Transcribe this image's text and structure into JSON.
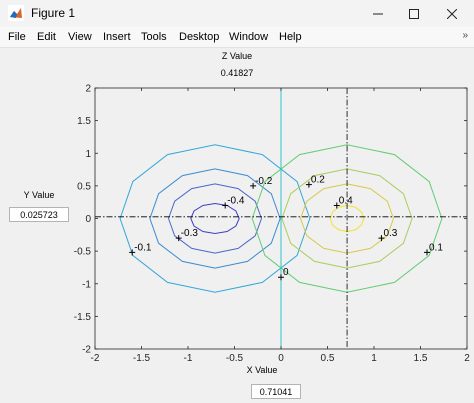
{
  "window": {
    "title": "Figure 1",
    "minimize_icon": "minimize-icon",
    "maximize_icon": "maximize-icon",
    "close_icon": "close-icon"
  },
  "menu": {
    "items": [
      "File",
      "Edit",
      "View",
      "Insert",
      "Tools",
      "Desktop",
      "Window",
      "Help"
    ],
    "overflow_icon": "chevron-double-icon"
  },
  "readouts": {
    "z_label": "Z Value",
    "z_value": "0.41827",
    "y_label": "Y Value",
    "y_value": "0.025723",
    "x_label": "X Value",
    "x_value": "0.71041"
  },
  "chart_data": {
    "type": "contour",
    "xlim": [
      -2,
      2
    ],
    "ylim": [
      -2,
      2
    ],
    "xticks": [
      "-2",
      "-1.5",
      "-1",
      "-0.5",
      "0",
      "0.5",
      "1",
      "1.5",
      "2"
    ],
    "yticks": [
      "-2",
      "-1.5",
      "-1",
      "-0.5",
      "0",
      "0.5",
      "1",
      "1.5",
      "2"
    ],
    "grid": false,
    "crosshair": {
      "x": 0.71041,
      "y": 0.025723
    },
    "contour_levels": [
      {
        "level": -0.4,
        "color": "#3e3ec4",
        "center": [
          -0.71,
          0.0
        ],
        "rx": 0.26,
        "ry": 0.23
      },
      {
        "level": -0.3,
        "color": "#4a67c8",
        "center": [
          -0.71,
          0.0
        ],
        "rx": 0.5,
        "ry": 0.53
      },
      {
        "level": -0.2,
        "color": "#3b8bd0",
        "center": [
          -0.71,
          0.0
        ],
        "rx": 0.7,
        "ry": 0.76
      },
      {
        "level": -0.1,
        "color": "#32a8d8",
        "center": [
          -0.71,
          0.0
        ],
        "rx": 1.02,
        "ry": 1.13
      },
      {
        "level": 0,
        "color": "#2ec3c8",
        "center": [
          0,
          0
        ],
        "rx": 0,
        "ry": 2
      },
      {
        "level": 0.1,
        "color": "#62cc70",
        "center": [
          0.71,
          0.0
        ],
        "rx": 1.02,
        "ry": 1.13
      },
      {
        "level": 0.2,
        "color": "#a8cd5a",
        "center": [
          0.71,
          0.0
        ],
        "rx": 0.7,
        "ry": 0.76
      },
      {
        "level": 0.3,
        "color": "#d8c94a",
        "center": [
          0.71,
          0.0
        ],
        "rx": 0.5,
        "ry": 0.53
      },
      {
        "level": 0.4,
        "color": "#f2e02c",
        "center": [
          0.71,
          0.0
        ],
        "rx": 0.18,
        "ry": 0.2
      }
    ],
    "labels": [
      {
        "text": "-0.4",
        "x": -0.6,
        "y": 0.2
      },
      {
        "text": "-0.3",
        "x": -1.1,
        "y": -0.3
      },
      {
        "text": "-0.2",
        "x": -0.3,
        "y": 0.5
      },
      {
        "text": "-0.1",
        "x": -1.6,
        "y": -0.52
      },
      {
        "text": "0",
        "x": 0.0,
        "y": -0.9
      },
      {
        "text": "0.1",
        "x": 1.57,
        "y": -0.52
      },
      {
        "text": "0.2",
        "x": 0.3,
        "y": 0.52
      },
      {
        "text": "0.3",
        "x": 1.08,
        "y": -0.3
      },
      {
        "text": "0.4",
        "x": 0.6,
        "y": 0.2
      }
    ]
  }
}
